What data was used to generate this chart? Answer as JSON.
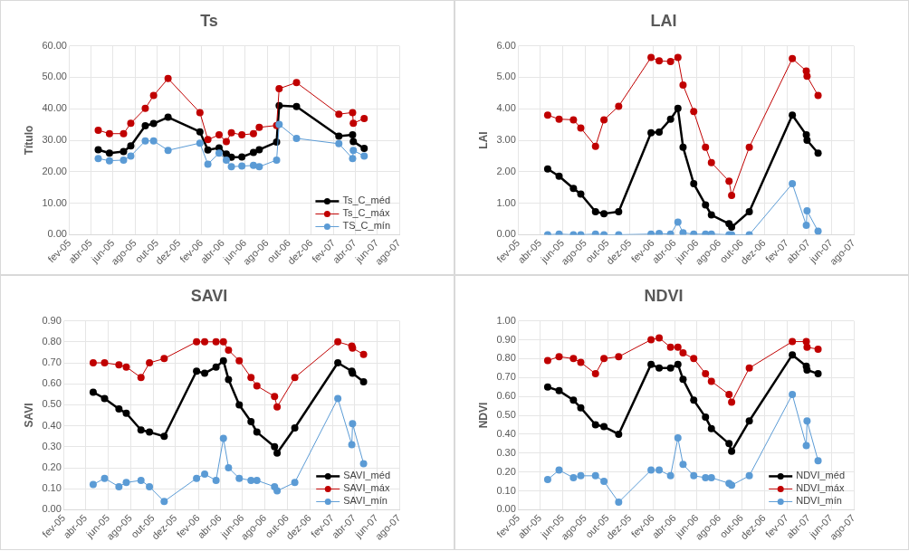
{
  "chart_data": [
    {
      "type": "line",
      "title": "Ts",
      "ylabel": "Título",
      "marker": "circle",
      "grid": true,
      "legend": "bottom right",
      "x": [
        "2005-04-21",
        "2005-05-22",
        "2005-06-30",
        "2005-07-20",
        "2005-08-29",
        "2005-09-21",
        "2005-10-31",
        "2006-01-27",
        "2006-02-18",
        "2006-03-21",
        "2006-04-10",
        "2006-04-24",
        "2006-05-23",
        "2006-06-24",
        "2006-07-10",
        "2006-08-27",
        "2006-09-03",
        "2006-10-21",
        "2007-02-15",
        "2007-03-25",
        "2007-03-27",
        "2007-04-26"
      ],
      "xlim": [
        "2005-02-01",
        "2007-08-01"
      ],
      "xticks": [
        {
          "value": "2005-02-01",
          "label": "fev-05"
        },
        {
          "value": "2005-04-01",
          "label": "abr-05"
        },
        {
          "value": "2005-06-01",
          "label": "jun-05"
        },
        {
          "value": "2005-08-01",
          "label": "ago-05"
        },
        {
          "value": "2005-10-01",
          "label": "out-05"
        },
        {
          "value": "2005-12-01",
          "label": "dez-05"
        },
        {
          "value": "2006-02-01",
          "label": "fev-06"
        },
        {
          "value": "2006-04-01",
          "label": "abr-06"
        },
        {
          "value": "2006-06-01",
          "label": "jun-06"
        },
        {
          "value": "2006-08-01",
          "label": "ago-06"
        },
        {
          "value": "2006-10-01",
          "label": "out-06"
        },
        {
          "value": "2006-12-01",
          "label": "dez-06"
        },
        {
          "value": "2007-02-01",
          "label": "fev-07"
        },
        {
          "value": "2007-04-01",
          "label": "abr-07"
        },
        {
          "value": "2007-06-01",
          "label": "jun-07"
        },
        {
          "value": "2007-08-01",
          "label": "ago-07"
        }
      ],
      "ylim": [
        0,
        60
      ],
      "yticks": [
        {
          "value": 0,
          "label": "0.00"
        },
        {
          "value": 10,
          "label": "10.00"
        },
        {
          "value": 20,
          "label": "20.00"
        },
        {
          "value": 30,
          "label": "30.00"
        },
        {
          "value": 40,
          "label": "40.00"
        },
        {
          "value": 50,
          "label": "50.00"
        },
        {
          "value": 60,
          "label": "60.00"
        }
      ],
      "series": [
        {
          "name": "Ts_C_méd",
          "color": "#000000",
          "values": [
            27.0,
            25.9,
            26.4,
            28.2,
            34.6,
            35.3,
            37.3,
            32.7,
            26.9,
            27.6,
            25.6,
            24.6,
            24.7,
            26.1,
            27.0,
            29.4,
            41.0,
            40.7,
            31.3,
            31.7,
            29.6,
            27.4
          ]
        },
        {
          "name": "Ts_C_máx",
          "color": "#c00000",
          "values": [
            33.2,
            32.1,
            32.1,
            35.4,
            40.1,
            44.2,
            49.6,
            38.8,
            30.2,
            31.7,
            29.6,
            32.4,
            31.7,
            32.1,
            34.1,
            34.7,
            46.4,
            48.3,
            38.3,
            38.8,
            35.4,
            36.9
          ]
        },
        {
          "name": "TS_C_mín",
          "color": "#5b9bd5",
          "values": [
            24.2,
            23.5,
            23.7,
            25.0,
            29.8,
            29.8,
            26.8,
            29.1,
            22.4,
            25.9,
            23.7,
            21.6,
            21.8,
            22.0,
            21.6,
            23.7,
            35.0,
            30.6,
            28.9,
            24.2,
            26.8,
            25.0
          ]
        }
      ]
    },
    {
      "type": "line",
      "title": "LAI",
      "ylabel": "LAI",
      "marker": "circle",
      "grid": true,
      "x": [
        "2005-04-21",
        "2005-05-22",
        "2005-06-30",
        "2005-07-20",
        "2005-08-29",
        "2005-09-21",
        "2005-10-31",
        "2006-01-27",
        "2006-02-18",
        "2006-03-21",
        "2006-04-10",
        "2006-04-24",
        "2006-05-23",
        "2006-06-24",
        "2006-07-10",
        "2006-08-27",
        "2006-09-03",
        "2006-10-21",
        "2007-02-15",
        "2007-03-25",
        "2007-03-27",
        "2007-04-26"
      ],
      "xlim": [
        "2005-02-01",
        "2007-08-01"
      ],
      "xticks": [
        {
          "value": "2005-02-01",
          "label": "fev-05"
        },
        {
          "value": "2005-04-01",
          "label": "abr-05"
        },
        {
          "value": "2005-06-01",
          "label": "jun-05"
        },
        {
          "value": "2005-08-01",
          "label": "ago-05"
        },
        {
          "value": "2005-10-01",
          "label": "out-05"
        },
        {
          "value": "2005-12-01",
          "label": "dez-05"
        },
        {
          "value": "2006-02-01",
          "label": "fev-06"
        },
        {
          "value": "2006-04-01",
          "label": "abr-06"
        },
        {
          "value": "2006-06-01",
          "label": "jun-06"
        },
        {
          "value": "2006-08-01",
          "label": "ago-06"
        },
        {
          "value": "2006-10-01",
          "label": "out-06"
        },
        {
          "value": "2006-12-01",
          "label": "dez-06"
        },
        {
          "value": "2007-02-01",
          "label": "fev-07"
        },
        {
          "value": "2007-04-01",
          "label": "abr-07"
        },
        {
          "value": "2007-06-01",
          "label": "jun-07"
        },
        {
          "value": "2007-08-01",
          "label": "ago-07"
        }
      ],
      "ylim": [
        0,
        6
      ],
      "yticks": [
        {
          "value": 0,
          "label": "0.00"
        },
        {
          "value": 1,
          "label": "1.00"
        },
        {
          "value": 2,
          "label": "2.00"
        },
        {
          "value": 3,
          "label": "3.00"
        },
        {
          "value": 4,
          "label": "4.00"
        },
        {
          "value": 5,
          "label": "5.00"
        },
        {
          "value": 6,
          "label": "6.00"
        }
      ],
      "series": [
        {
          "color": "#000000",
          "values": [
            2.09,
            1.86,
            1.47,
            1.29,
            0.73,
            0.67,
            0.73,
            3.24,
            3.26,
            3.67,
            4.01,
            2.78,
            1.62,
            0.95,
            0.63,
            0.35,
            0.24,
            0.73,
            3.8,
            3.17,
            3.0,
            2.59
          ]
        },
        {
          "color": "#c00000",
          "values": [
            3.8,
            3.67,
            3.65,
            3.39,
            2.81,
            3.65,
            4.08,
            5.63,
            5.52,
            5.5,
            5.63,
            4.75,
            3.91,
            2.78,
            2.29,
            1.7,
            1.25,
            2.78,
            5.59,
            5.2,
            5.03,
            4.42
          ]
        },
        {
          "color": "#5b9bd5",
          "values": [
            0.0,
            0.02,
            0.0,
            0.0,
            0.02,
            0.0,
            0.0,
            0.02,
            0.04,
            0.02,
            0.4,
            0.06,
            0.02,
            0.02,
            0.02,
            0.0,
            0.0,
            0.0,
            1.62,
            0.3,
            0.76,
            0.11
          ]
        }
      ]
    },
    {
      "type": "line",
      "title": "SAVI",
      "ylabel": "SAVI",
      "marker": "circle",
      "grid": true,
      "legend": "bottom right",
      "x": [
        "2005-04-21",
        "2005-05-22",
        "2005-06-30",
        "2005-07-20",
        "2005-08-29",
        "2005-09-21",
        "2005-10-31",
        "2006-01-27",
        "2006-02-18",
        "2006-03-21",
        "2006-04-10",
        "2006-04-24",
        "2006-05-23",
        "2006-06-24",
        "2006-07-10",
        "2006-08-27",
        "2006-09-03",
        "2006-10-21",
        "2007-02-15",
        "2007-03-25",
        "2007-03-27",
        "2007-04-26"
      ],
      "xlim": [
        "2005-02-01",
        "2007-08-01"
      ],
      "xticks": [
        {
          "value": "2005-02-01",
          "label": "fev-05"
        },
        {
          "value": "2005-04-01",
          "label": "abr-05"
        },
        {
          "value": "2005-06-01",
          "label": "jun-05"
        },
        {
          "value": "2005-08-01",
          "label": "ago-05"
        },
        {
          "value": "2005-10-01",
          "label": "out-05"
        },
        {
          "value": "2005-12-01",
          "label": "dez-05"
        },
        {
          "value": "2006-02-01",
          "label": "fev-06"
        },
        {
          "value": "2006-04-01",
          "label": "abr-06"
        },
        {
          "value": "2006-06-01",
          "label": "jun-06"
        },
        {
          "value": "2006-08-01",
          "label": "ago-06"
        },
        {
          "value": "2006-10-01",
          "label": "out-06"
        },
        {
          "value": "2006-12-01",
          "label": "dez-06"
        },
        {
          "value": "2007-02-01",
          "label": "fev-07"
        },
        {
          "value": "2007-04-01",
          "label": "abr-07"
        },
        {
          "value": "2007-06-01",
          "label": "jun-07"
        },
        {
          "value": "2007-08-01",
          "label": "ago-07"
        }
      ],
      "ylim": [
        0,
        0.9
      ],
      "yticks": [
        {
          "value": 0,
          "label": "0.00"
        },
        {
          "value": 0.1,
          "label": "0.10"
        },
        {
          "value": 0.2,
          "label": "0.20"
        },
        {
          "value": 0.3,
          "label": "0.30"
        },
        {
          "value": 0.4,
          "label": "0.40"
        },
        {
          "value": 0.5,
          "label": "0.50"
        },
        {
          "value": 0.6,
          "label": "0.60"
        },
        {
          "value": 0.7,
          "label": "0.70"
        },
        {
          "value": 0.8,
          "label": "0.80"
        },
        {
          "value": 0.9,
          "label": "0.90"
        }
      ],
      "series": [
        {
          "name": "SAVI_méd",
          "color": "#000000",
          "values": [
            0.56,
            0.53,
            0.48,
            0.46,
            0.38,
            0.37,
            0.35,
            0.66,
            0.65,
            0.68,
            0.71,
            0.62,
            0.5,
            0.42,
            0.37,
            0.3,
            0.27,
            0.39,
            0.7,
            0.66,
            0.65,
            0.61
          ]
        },
        {
          "name": "SAVI_máx",
          "color": "#c00000",
          "values": [
            0.7,
            0.7,
            0.69,
            0.68,
            0.63,
            0.7,
            0.72,
            0.8,
            0.8,
            0.8,
            0.8,
            0.76,
            0.71,
            0.63,
            0.59,
            0.54,
            0.49,
            0.63,
            0.8,
            0.78,
            0.77,
            0.74
          ]
        },
        {
          "name": "SAVI_mín",
          "color": "#5b9bd5",
          "values": [
            0.12,
            0.15,
            0.11,
            0.13,
            0.14,
            0.11,
            0.04,
            0.15,
            0.17,
            0.14,
            0.34,
            0.2,
            0.15,
            0.14,
            0.14,
            0.11,
            0.09,
            0.13,
            0.53,
            0.31,
            0.41,
            0.22
          ]
        }
      ]
    },
    {
      "type": "line",
      "title": "NDVI",
      "ylabel": "NDVI",
      "marker": "circle",
      "grid": true,
      "legend": "bottom right",
      "x": [
        "2005-04-21",
        "2005-05-22",
        "2005-06-30",
        "2005-07-20",
        "2005-08-29",
        "2005-09-21",
        "2005-10-31",
        "2006-01-27",
        "2006-02-18",
        "2006-03-21",
        "2006-04-10",
        "2006-04-24",
        "2006-05-23",
        "2006-06-24",
        "2006-07-10",
        "2006-08-27",
        "2006-09-03",
        "2006-10-21",
        "2007-02-15",
        "2007-03-25",
        "2007-03-27",
        "2007-04-26"
      ],
      "xlim": [
        "2005-02-01",
        "2007-08-01"
      ],
      "xticks": [
        {
          "value": "2005-02-01",
          "label": "fev-05"
        },
        {
          "value": "2005-04-01",
          "label": "abr-05"
        },
        {
          "value": "2005-06-01",
          "label": "jun-05"
        },
        {
          "value": "2005-08-01",
          "label": "ago-05"
        },
        {
          "value": "2005-10-01",
          "label": "out-05"
        },
        {
          "value": "2005-12-01",
          "label": "dez-05"
        },
        {
          "value": "2006-02-01",
          "label": "fev-06"
        },
        {
          "value": "2006-04-01",
          "label": "abr-06"
        },
        {
          "value": "2006-06-01",
          "label": "jun-06"
        },
        {
          "value": "2006-08-01",
          "label": "ago-06"
        },
        {
          "value": "2006-10-01",
          "label": "out-06"
        },
        {
          "value": "2006-12-01",
          "label": "dez-06"
        },
        {
          "value": "2007-02-01",
          "label": "fev-07"
        },
        {
          "value": "2007-04-01",
          "label": "abr-07"
        },
        {
          "value": "2007-06-01",
          "label": "jun-07"
        },
        {
          "value": "2007-08-01",
          "label": "ago-07"
        }
      ],
      "ylim": [
        0,
        1
      ],
      "yticks": [
        {
          "value": 0,
          "label": "0.00"
        },
        {
          "value": 0.1,
          "label": "0.10"
        },
        {
          "value": 0.2,
          "label": "0.20"
        },
        {
          "value": 0.3,
          "label": "0.30"
        },
        {
          "value": 0.4,
          "label": "0.40"
        },
        {
          "value": 0.5,
          "label": "0.50"
        },
        {
          "value": 0.6,
          "label": "0.60"
        },
        {
          "value": 0.7,
          "label": "0.70"
        },
        {
          "value": 0.8,
          "label": "0.80"
        },
        {
          "value": 0.9,
          "label": "0.90"
        },
        {
          "value": 1,
          "label": "1.00"
        }
      ],
      "series": [
        {
          "name": "NDVI_méd",
          "color": "#000000",
          "values": [
            0.65,
            0.63,
            0.58,
            0.54,
            0.45,
            0.44,
            0.4,
            0.77,
            0.75,
            0.75,
            0.77,
            0.69,
            0.58,
            0.49,
            0.43,
            0.35,
            0.31,
            0.47,
            0.82,
            0.76,
            0.74,
            0.72
          ]
        },
        {
          "name": "NDVI_máx",
          "color": "#c00000",
          "values": [
            0.79,
            0.81,
            0.8,
            0.78,
            0.72,
            0.8,
            0.81,
            0.9,
            0.91,
            0.86,
            0.86,
            0.83,
            0.8,
            0.72,
            0.68,
            0.61,
            0.57,
            0.75,
            0.89,
            0.89,
            0.86,
            0.85
          ]
        },
        {
          "name": "NDVI_mín",
          "color": "#5b9bd5",
          "values": [
            0.16,
            0.21,
            0.17,
            0.18,
            0.18,
            0.15,
            0.04,
            0.21,
            0.21,
            0.18,
            0.38,
            0.24,
            0.18,
            0.17,
            0.17,
            0.14,
            0.13,
            0.18,
            0.61,
            0.34,
            0.47,
            0.26
          ]
        }
      ]
    }
  ]
}
